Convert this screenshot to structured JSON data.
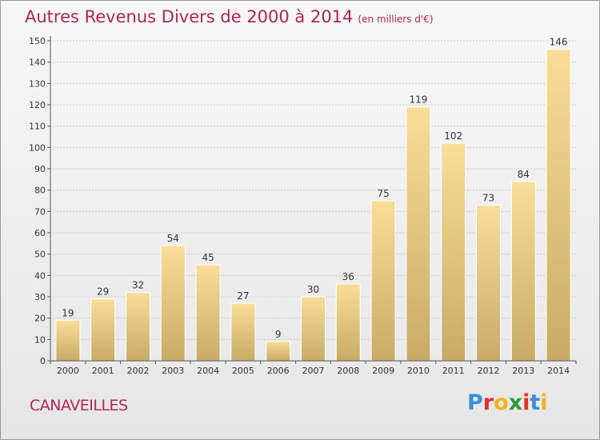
{
  "title": "Autres Revenus Divers de 2000 à 2014",
  "unit": "(en milliers d'€)",
  "footer": {
    "town": "CANAVEILLES"
  },
  "brand": {
    "text": "Proxiti",
    "letters": [
      {
        "ch": "P",
        "color": "#3a8fd6"
      },
      {
        "ch": "r",
        "color": "#e5302e"
      },
      {
        "ch": "o",
        "color": "#f2b417"
      },
      {
        "ch": "x",
        "color": "#2e9c3a"
      },
      {
        "ch": "i",
        "color": "#e5302e"
      },
      {
        "ch": "t",
        "color": "#3a8fd6"
      },
      {
        "ch": "i",
        "color": "#f2b417"
      }
    ]
  },
  "colors": {
    "bar_top": "#f8de98",
    "bar_bottom": "#c7ab66",
    "bar_border": "#ffffff",
    "grid": "#c8c8c8",
    "axis": "#555555",
    "label": "#333333"
  },
  "chart_data": {
    "type": "bar",
    "categories": [
      "2000",
      "2001",
      "2002",
      "2003",
      "2004",
      "2005",
      "2006",
      "2007",
      "2008",
      "2009",
      "2010",
      "2011",
      "2012",
      "2013",
      "2014"
    ],
    "values": [
      19,
      29,
      32,
      54,
      45,
      27,
      9,
      30,
      36,
      75,
      119,
      102,
      73,
      84,
      146
    ],
    "ylim": [
      0,
      150
    ],
    "yticks": [
      0,
      10,
      20,
      30,
      40,
      50,
      60,
      70,
      80,
      90,
      100,
      110,
      120,
      130,
      140,
      150
    ],
    "grid": true,
    "data_labels": true
  }
}
